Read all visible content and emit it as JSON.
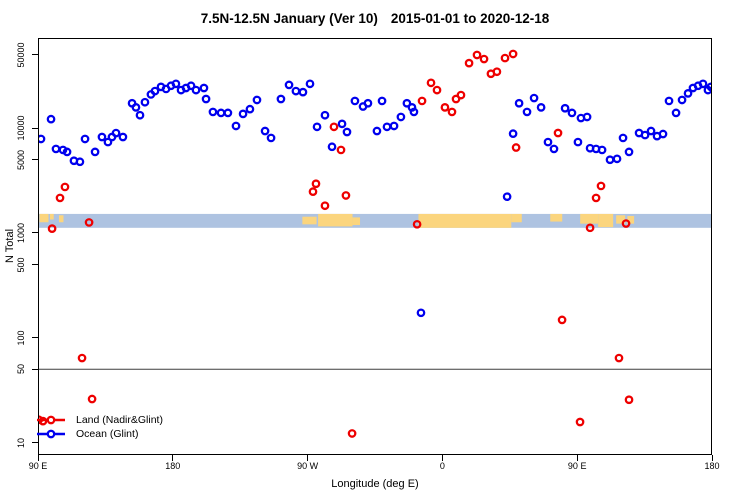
{
  "title": {
    "left": "7.5N-12.5N January (Ver 10)",
    "right": "2015-01-01 to 2020-12-18"
  },
  "legend": {
    "items": [
      {
        "label": "Land (Nadir&Glint)",
        "color": "#ee0000"
      },
      {
        "label": "Ocean (Glint)",
        "color": "#0000ee"
      }
    ]
  },
  "chart_data": {
    "type": "scatter",
    "title": "7.5N-12.5N January (Ver 10)   2015-01-01 to 2020-12-18",
    "xlabel": "Longitude (deg E)",
    "ylabel": "N Total",
    "x_axis": {
      "min": 90,
      "max": 540,
      "ticks": [
        {
          "value": 90,
          "label": "90 E"
        },
        {
          "value": 180,
          "label": "180"
        },
        {
          "value": 270,
          "label": "90 W"
        },
        {
          "value": 360,
          "label": "0"
        },
        {
          "value": 450,
          "label": "90 E"
        },
        {
          "value": 540,
          "label": "180"
        }
      ]
    },
    "y_axis": {
      "scale": "log10",
      "min": 7.6,
      "max": 72600,
      "ticks": [
        {
          "value": 10,
          "label": "10"
        },
        {
          "value": 50,
          "label": "50"
        },
        {
          "value": 100,
          "label": "100"
        },
        {
          "value": 500,
          "label": "500"
        },
        {
          "value": 1000,
          "label": "1000"
        },
        {
          "value": 5000,
          "label": "5000"
        },
        {
          "value": 10000,
          "label": "10000"
        },
        {
          "value": 50000,
          "label": "50000"
        }
      ]
    },
    "reference_line": {
      "y": 50,
      "color": "#3f3f3f"
    },
    "map_strip": {
      "y_top": 1520,
      "y_bottom": 1120,
      "ocean_color": "#aec3e1",
      "land_color": "#fbd57e",
      "land_segments": [
        {
          "from": 91,
          "to": 97,
          "top": 0,
          "h": 0.6
        },
        {
          "from": 98,
          "to": 100.5,
          "top": 0,
          "h": 0.4
        },
        {
          "from": 104,
          "to": 107,
          "top": 0.1,
          "h": 0.5
        },
        {
          "from": 266.5,
          "to": 276,
          "top": 0.2,
          "h": 0.55
        },
        {
          "from": 277,
          "to": 300,
          "top": 0,
          "h": 0.9
        },
        {
          "from": 300,
          "to": 305,
          "top": 0.25,
          "h": 0.55
        },
        {
          "from": 344,
          "to": 406,
          "top": 0,
          "h": 1
        },
        {
          "from": 406,
          "to": 413,
          "top": 0,
          "h": 0.6
        },
        {
          "from": 432,
          "to": 440,
          "top": 0,
          "h": 0.55
        },
        {
          "from": 452,
          "to": 464,
          "top": 0,
          "h": 0.7
        },
        {
          "from": 464,
          "to": 474,
          "top": 0,
          "h": 0.95
        },
        {
          "from": 476,
          "to": 482,
          "top": 0.1,
          "h": 0.6
        },
        {
          "from": 483.5,
          "to": 488,
          "top": 0.15,
          "h": 0.55
        }
      ]
    },
    "series": [
      {
        "name": "Land (Nadir&Glint)",
        "color": "#ee0000",
        "marker": "open-circle",
        "points": [
          [
            90.5,
            16.5
          ],
          [
            93.3,
            16
          ],
          [
            99.4,
            1100
          ],
          [
            104.7,
            2160
          ],
          [
            108,
            2750
          ],
          [
            119.4,
            64
          ],
          [
            124.1,
            1260
          ],
          [
            126.1,
            26
          ],
          [
            273.6,
            2480
          ],
          [
            275.6,
            2950
          ],
          [
            281.6,
            1820
          ],
          [
            287.6,
            10300
          ],
          [
            292.3,
            6200
          ],
          [
            295.6,
            2280
          ],
          [
            299.7,
            12.2
          ],
          [
            343.1,
            1210
          ],
          [
            346.4,
            18200
          ],
          [
            352.4,
            27100
          ],
          [
            356.4,
            23100
          ],
          [
            361.7,
            15800
          ],
          [
            366.4,
            14300
          ],
          [
            369.1,
            19000
          ],
          [
            372.4,
            20700
          ],
          [
            377.8,
            41800
          ],
          [
            383.1,
            50000
          ],
          [
            387.8,
            45700
          ],
          [
            392.4,
            33100
          ],
          [
            396.4,
            34600
          ],
          [
            401.8,
            46700
          ],
          [
            407.2,
            51100
          ],
          [
            409.2,
            6540
          ],
          [
            437.2,
            9000
          ],
          [
            439.9,
            148
          ],
          [
            451.9,
            15.7
          ],
          [
            458.6,
            1120
          ],
          [
            462.6,
            2160
          ],
          [
            465.9,
            2810
          ],
          [
            477.9,
            64
          ],
          [
            482.6,
            1230
          ],
          [
            484.6,
            25.6
          ]
        ]
      },
      {
        "name": "Ocean (Glint)",
        "color": "#0000ee",
        "marker": "open-circle",
        "points": [
          [
            92,
            7890
          ],
          [
            98.7,
            12200
          ],
          [
            102,
            6340
          ],
          [
            106.7,
            6200
          ],
          [
            109.4,
            5940
          ],
          [
            114,
            4890
          ],
          [
            118,
            4780
          ],
          [
            121.4,
            7890
          ],
          [
            128.1,
            5940
          ],
          [
            132.7,
            8240
          ],
          [
            136.7,
            7370
          ],
          [
            139.4,
            8240
          ],
          [
            142.1,
            8980
          ],
          [
            146.7,
            8240
          ],
          [
            152.8,
            17300
          ],
          [
            155.4,
            15800
          ],
          [
            158.1,
            13300
          ],
          [
            161.4,
            17700
          ],
          [
            165.4,
            21000
          ],
          [
            168.1,
            22600
          ],
          [
            172.1,
            24800
          ],
          [
            175.5,
            23700
          ],
          [
            178.8,
            25400
          ],
          [
            182.1,
            26500
          ],
          [
            185.5,
            23100
          ],
          [
            188.8,
            24200
          ],
          [
            192.2,
            25400
          ],
          [
            195.5,
            23100
          ],
          [
            200.8,
            24200
          ],
          [
            202.2,
            19000
          ],
          [
            206.8,
            14300
          ],
          [
            212.2,
            14000
          ],
          [
            216.8,
            14000
          ],
          [
            222.2,
            10500
          ],
          [
            226.9,
            13700
          ],
          [
            231.5,
            15200
          ],
          [
            236.2,
            18600
          ],
          [
            241.6,
            9400
          ],
          [
            245.6,
            8070
          ],
          [
            252.2,
            19000
          ],
          [
            257.6,
            25900
          ],
          [
            262.2,
            22600
          ],
          [
            266.9,
            22100
          ],
          [
            271.6,
            26500
          ],
          [
            276.3,
            10300
          ],
          [
            281.6,
            13300
          ],
          [
            286.3,
            6650
          ],
          [
            293,
            11000
          ],
          [
            296.3,
            9200
          ],
          [
            301.6,
            18200
          ],
          [
            307,
            16100
          ],
          [
            310.3,
            17300
          ],
          [
            316.3,
            9400
          ],
          [
            319.7,
            18200
          ],
          [
            323,
            10300
          ],
          [
            327.7,
            10500
          ],
          [
            332.3,
            12800
          ],
          [
            336.3,
            17300
          ],
          [
            339.7,
            15800
          ],
          [
            341,
            14300
          ],
          [
            345.7,
            173
          ],
          [
            403.2,
            2220
          ],
          [
            407.2,
            8870
          ],
          [
            411.2,
            17300
          ],
          [
            416.5,
            14300
          ],
          [
            421.2,
            19400
          ],
          [
            425.9,
            15800
          ],
          [
            430.5,
            7370
          ],
          [
            434.5,
            6340
          ],
          [
            441.9,
            15500
          ],
          [
            446.5,
            14000
          ],
          [
            450.5,
            7370
          ],
          [
            452.5,
            12500
          ],
          [
            456.6,
            12800
          ],
          [
            458.6,
            6440
          ],
          [
            462.6,
            6340
          ],
          [
            466.6,
            6200
          ],
          [
            471.9,
            5000
          ],
          [
            476.6,
            5100
          ],
          [
            480.6,
            8070
          ],
          [
            484.6,
            5940
          ],
          [
            491.3,
            9000
          ],
          [
            495.3,
            8600
          ],
          [
            499.3,
            9400
          ],
          [
            503.3,
            8400
          ],
          [
            507.3,
            8800
          ],
          [
            511.3,
            18200
          ],
          [
            516,
            14000
          ],
          [
            520,
            18600
          ],
          [
            524,
            21500
          ],
          [
            527.3,
            24200
          ],
          [
            530.7,
            25400
          ],
          [
            534,
            26500
          ],
          [
            537.3,
            23100
          ],
          [
            539.3,
            24800
          ]
        ]
      }
    ]
  }
}
